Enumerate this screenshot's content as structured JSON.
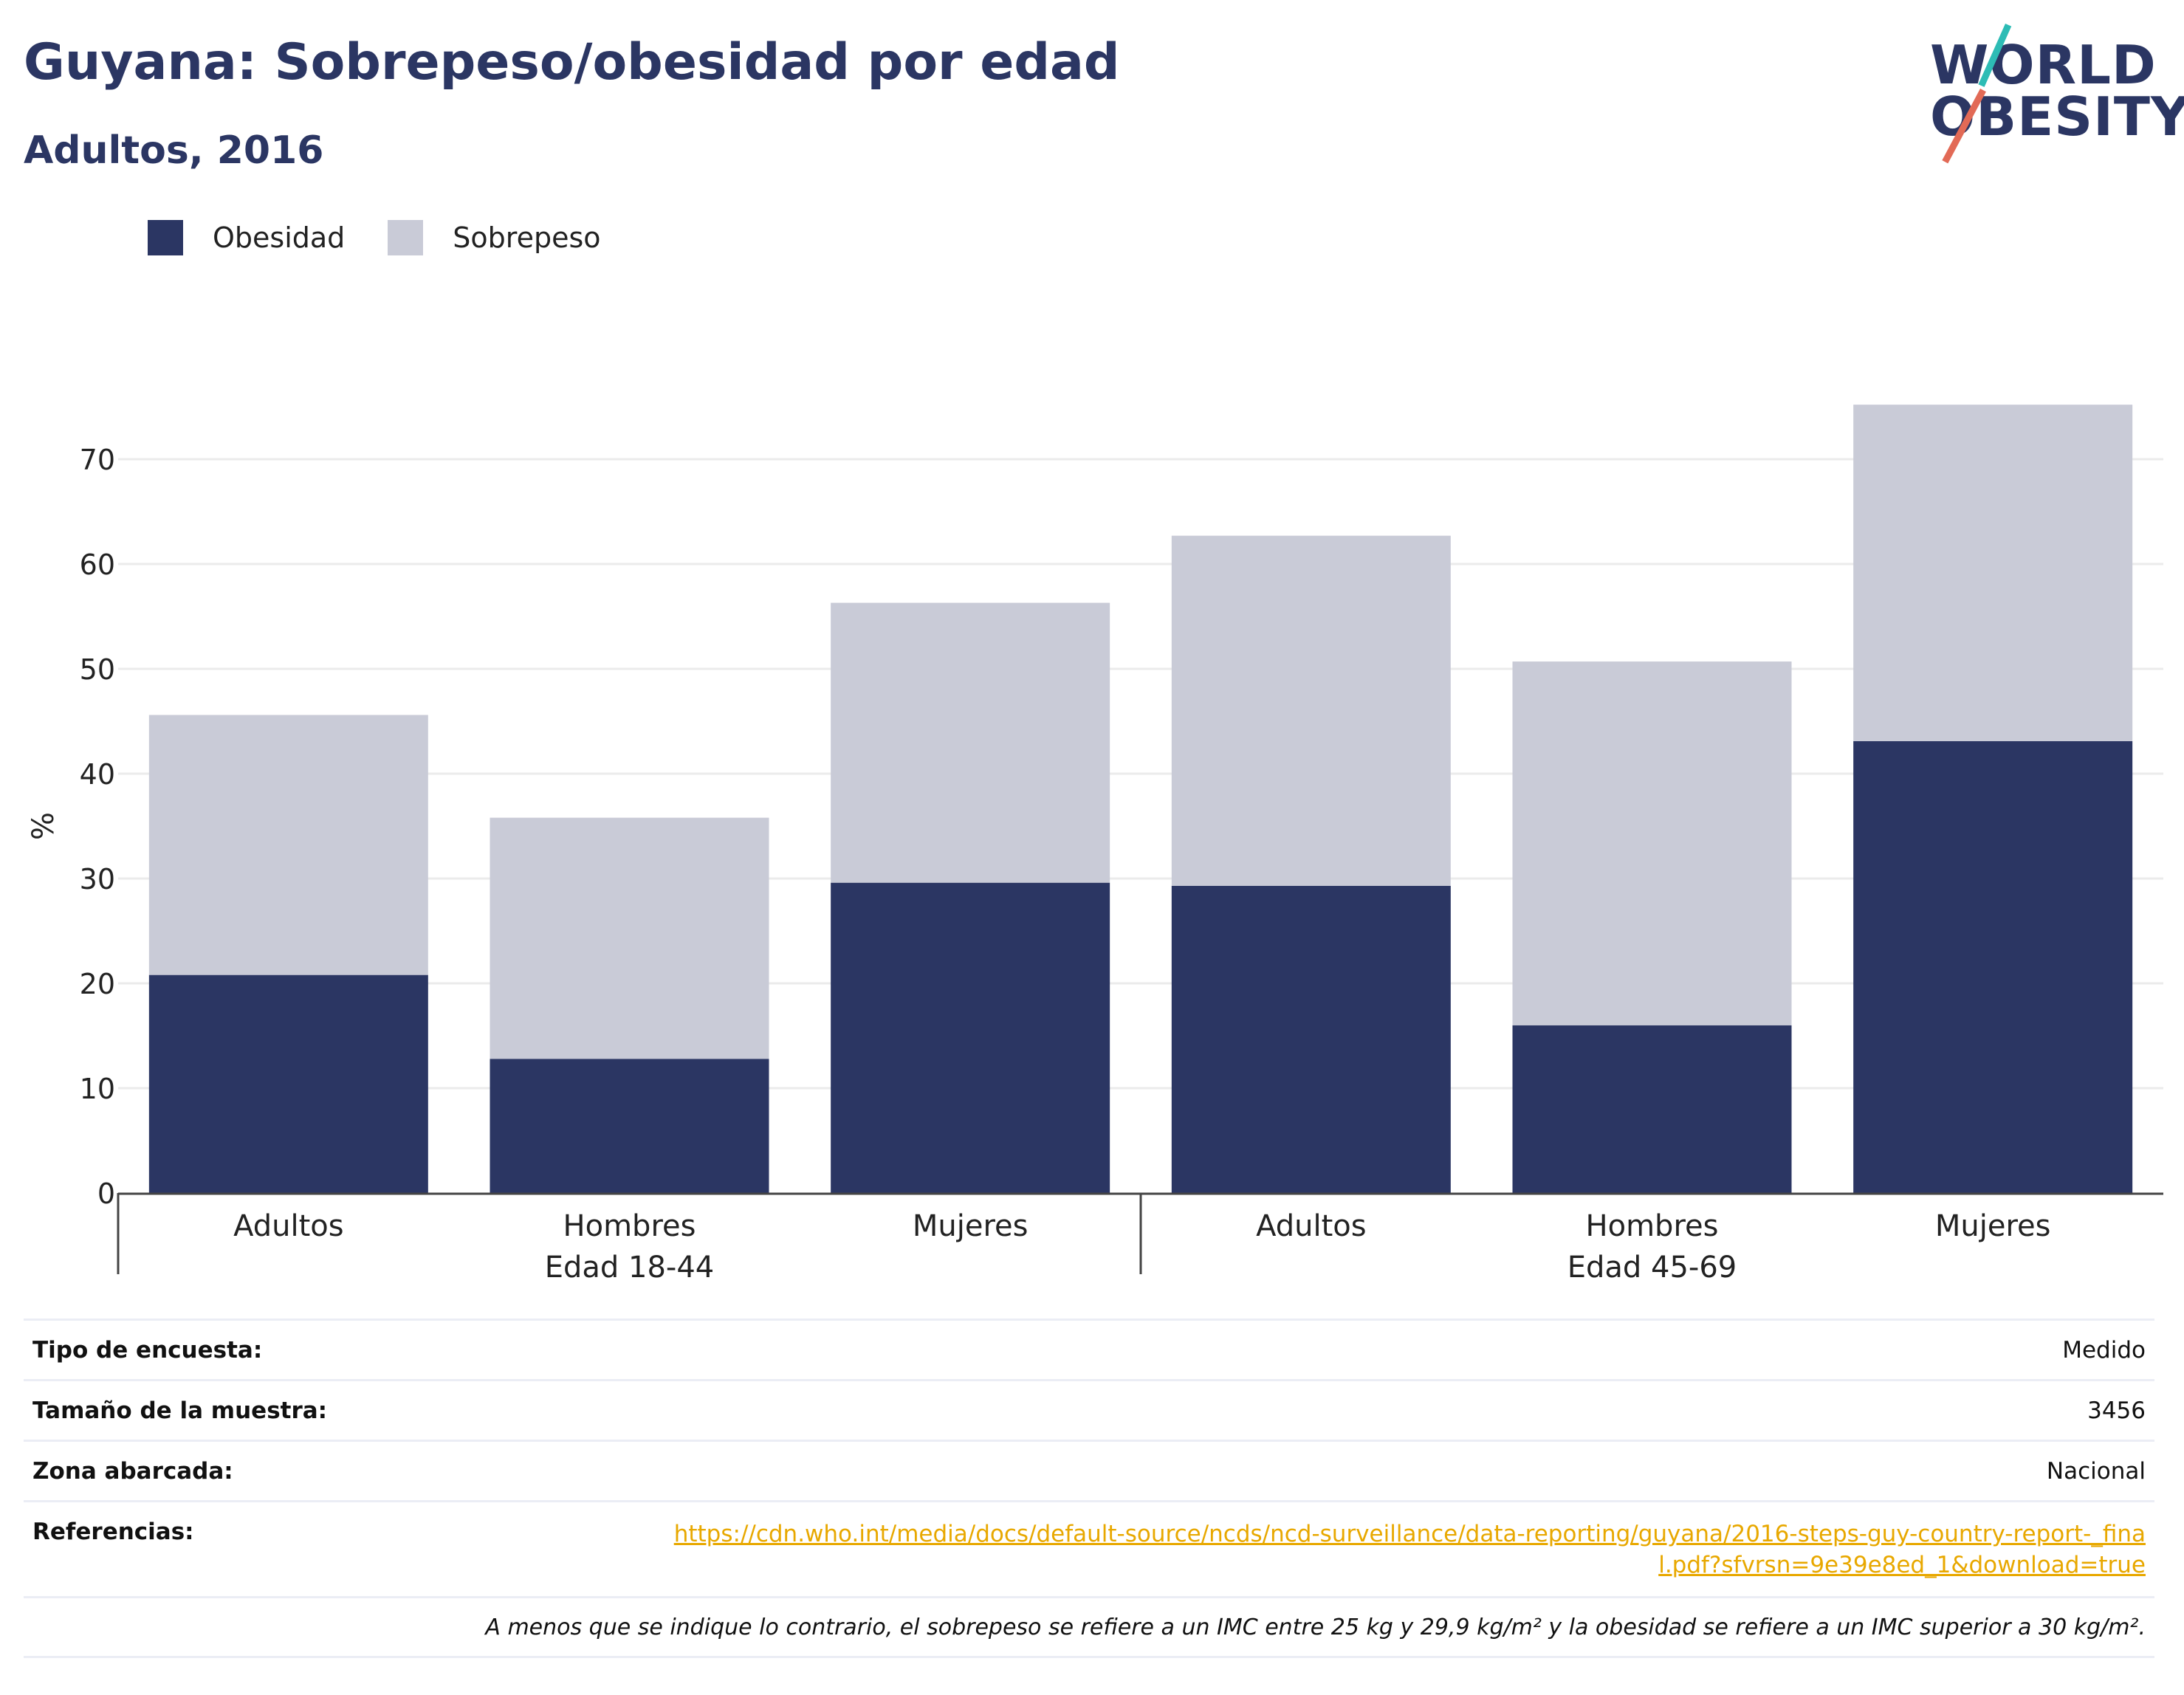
{
  "header": {
    "title": "Guyana: Sobrepeso/obesidad por edad",
    "subtitle": "Adultos, 2016"
  },
  "logo": {
    "line1": "WORLD",
    "line2": "OBESITY"
  },
  "colors": {
    "obesidad": "#2b3663",
    "sobrepeso": "#c9cbd7",
    "title": "#2b3663",
    "link": "#e8a800"
  },
  "legend": [
    {
      "label": "Obesidad",
      "color": "#2b3663"
    },
    {
      "label": "Sobrepeso",
      "color": "#c9cbd7"
    }
  ],
  "chart_data": {
    "type": "bar",
    "stacked": true,
    "ylabel": "%",
    "ylim": [
      0,
      77
    ],
    "yticks": [
      0,
      10,
      20,
      30,
      40,
      50,
      60,
      70
    ],
    "grid": true,
    "legend_position": "top-left",
    "categories": [
      "Adultos",
      "Hombres",
      "Mujeres",
      "Adultos",
      "Hombres",
      "Mujeres"
    ],
    "groups": [
      {
        "label": "Edad 18-44",
        "categories": [
          0,
          1,
          2
        ]
      },
      {
        "label": "Edad 45-69",
        "categories": [
          3,
          4,
          5
        ]
      }
    ],
    "series": [
      {
        "name": "Obesidad",
        "values": [
          20.8,
          12.8,
          29.6,
          29.3,
          16.0,
          43.1
        ]
      },
      {
        "name": "Sobrepeso",
        "values": [
          24.8,
          23.0,
          26.7,
          33.4,
          34.7,
          32.1
        ]
      }
    ]
  },
  "info": {
    "survey_type_label": "Tipo de encuesta:",
    "survey_type_value": "Medido",
    "sample_size_label": "Tamaño de la muestra:",
    "sample_size_value": "3456",
    "area_label": "Zona abarcada:",
    "area_value": "Nacional",
    "references_label": "Referencias:",
    "references_value": "https://cdn.who.int/media/docs/default-source/ncds/ncd-surveillance/data-reporting/guyana/2016-steps-guy-country-report-_final.pdf?sfvrsn=9e39e8ed_1&download=true",
    "note": "A menos que se indique lo contrario, el sobrepeso se refiere a un IMC entre 25 kg y 29,9 kg/m² y la obesidad se refiere a un IMC superior a 30 kg/m²."
  }
}
